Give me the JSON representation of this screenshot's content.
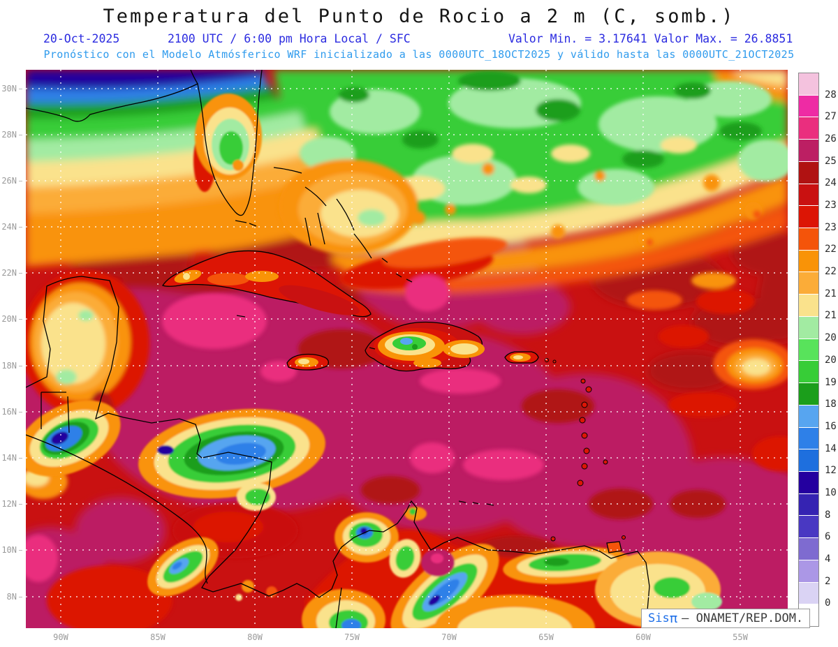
{
  "header": {
    "title": "Temperatura del Punto de Rocio a 2 m (C, somb.)",
    "date": "20-Oct-2025",
    "time": "2100 UTC / 6:00 pm Hora Local / SFC",
    "minmax": "Valor Min. = 3.17641  Valor Max. = 26.8851",
    "model_line": "Pronóstico con el Modelo Atmósferico WRF inicializado a las 0000UTC_18OCT2025 y válido hasta las  0000UTC_21OCT2025"
  },
  "axes": {
    "lat_labels": [
      "30N",
      "28N",
      "26N",
      "24N",
      "22N",
      "20N",
      "18N",
      "16N",
      "14N",
      "12N",
      "10N",
      "8N"
    ],
    "lon_labels": [
      "90W",
      "85W",
      "80W",
      "75W",
      "70W",
      "65W",
      "60W",
      "55W"
    ]
  },
  "palette": {
    "pink_light": "#F4C2DE",
    "magenta": "#EE2BA4",
    "pink_deep": "#EA2E7E",
    "raspberry": "#BC1F63",
    "darkred": "#B01212",
    "red": "#C91111",
    "scarlet": "#DC1505",
    "orangered": "#F4540A",
    "orange": "#F99307",
    "lightorange": "#FBAC38",
    "yellow": "#FAE28C",
    "palegreen": "#A2EBA2",
    "lightgreen": "#58E35B",
    "green": "#37CD37",
    "darkgreen": "#1B9E1B",
    "lightblue": "#57A5F0",
    "medblue": "#2E80E8",
    "blue2": "#1E6FDE",
    "navy": "#24009F",
    "indigo": "#3523B2",
    "violet": "#4938C2",
    "purple": "#7E6BD0",
    "lightpurple": "#AB97E6",
    "lavender": "#DAD3F4",
    "white": "#FFFFFF"
  },
  "colorbar": {
    "color_keys": [
      "pink_light",
      "magenta",
      "pink_deep",
      "raspberry",
      "darkred",
      "red",
      "scarlet",
      "orangered",
      "orange",
      "lightorange",
      "yellow",
      "palegreen",
      "lightgreen",
      "green",
      "darkgreen",
      "lightblue",
      "medblue",
      "blue2",
      "navy",
      "indigo",
      "violet",
      "purple",
      "lightpurple",
      "lavender",
      "white"
    ],
    "labels": [
      "28",
      "27",
      "26",
      "25",
      "24.5",
      "23.5",
      "23",
      "22.5",
      "22",
      "21.5",
      "21",
      "20.5",
      "20",
      "19",
      "18",
      "16",
      "14",
      "12",
      "10",
      "8",
      "6",
      "4",
      "2",
      "0"
    ]
  },
  "watermark": {
    "app": "Sis",
    "pi": "π",
    "rest": "– ONAMET/REP.DOM."
  },
  "chart_data": {
    "type": "heatmap",
    "title": "Temperatura del Punto de Rocio a 2 m (C, somb.)",
    "variable": "Dew point temperature at 2 m",
    "units": "C",
    "valid_time": "20-Oct-2025 2100 UTC / 6:00 pm Hora Local / SFC",
    "model": "WRF",
    "init": "0000UTC_18OCT2025",
    "valid_until": "0000UTC_21OCT2025",
    "value_min": 3.17641,
    "value_max": 26.8851,
    "contour_levels": [
      0,
      2,
      4,
      6,
      8,
      10,
      12,
      14,
      16,
      18,
      19,
      20,
      20.5,
      21,
      21.5,
      22,
      22.5,
      23,
      23.5,
      24.5,
      25,
      26,
      27,
      28
    ],
    "lat_ticks": [
      "30N",
      "28N",
      "26N",
      "24N",
      "22N",
      "20N",
      "18N",
      "16N",
      "14N",
      "12N",
      "10N",
      "8N"
    ],
    "lon_ticks": [
      "90W",
      "85W",
      "80W",
      "75W",
      "70W",
      "65W",
      "60W",
      "55W"
    ],
    "legend_position": "right",
    "grid": "dotted"
  }
}
